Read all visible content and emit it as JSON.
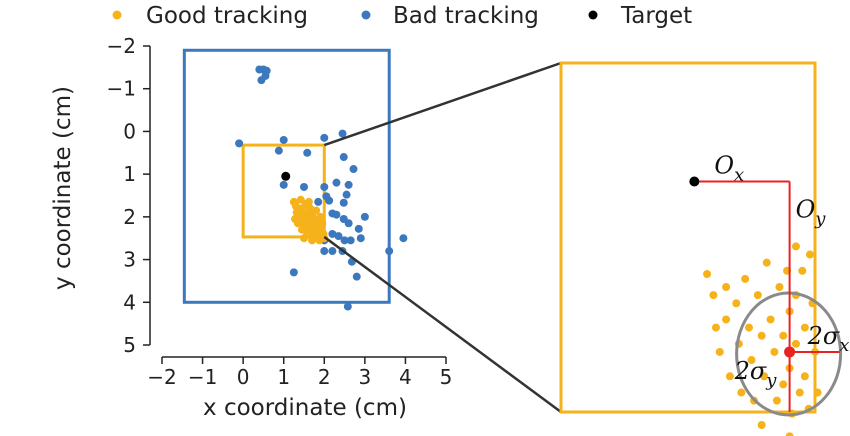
{
  "chart_data": {
    "type": "scatter",
    "title": "",
    "xlabel": "x coordinate (cm)",
    "ylabel": "y coordinate (cm)",
    "xlim": [
      -2,
      5
    ],
    "ylim": [
      5,
      -2
    ],
    "y_inverted": true,
    "xticks": [
      "−2",
      "−1",
      "0",
      "1",
      "2",
      "3",
      "4",
      "5"
    ],
    "yticks": [
      "−2",
      "−1",
      "0",
      "1",
      "2",
      "3",
      "4",
      "5"
    ],
    "grid": false,
    "legend": {
      "placement": "top",
      "entries": [
        "Good tracking",
        "Bad tracking",
        "Target"
      ]
    },
    "colors": {
      "good": "#F5B21A",
      "bad": "#3B78BE",
      "target": "#000000",
      "stat": "#E8221F",
      "ellipse": "#8A8A8A",
      "zoom_line": "#333333"
    },
    "target": {
      "x": 1.05,
      "y": 1.05
    },
    "rectangles": [
      {
        "name": "bad-tracking-extent",
        "color": "bad",
        "x": [
          -1.45,
          3.6
        ],
        "y": [
          -1.9,
          4.0
        ]
      },
      {
        "name": "good-tracking-extent",
        "color": "good",
        "x": [
          0.0,
          2.0
        ],
        "y": [
          0.32,
          2.47
        ]
      }
    ],
    "series": [
      {
        "name": "Bad tracking",
        "color": "bad",
        "points": [
          [
            0.4,
            -1.45
          ],
          [
            0.5,
            -1.45
          ],
          [
            0.55,
            -1.3
          ],
          [
            0.45,
            -1.2
          ],
          [
            0.58,
            -1.42
          ],
          [
            -0.1,
            0.28
          ],
          [
            0.88,
            0.45
          ],
          [
            1.0,
            0.2
          ],
          [
            1.58,
            0.5
          ],
          [
            2.0,
            0.15
          ],
          [
            2.48,
            0.6
          ],
          [
            2.72,
            0.88
          ],
          [
            2.45,
            0.05
          ],
          [
            1.0,
            1.25
          ],
          [
            1.5,
            1.3
          ],
          [
            2.0,
            1.3
          ],
          [
            2.05,
            1.52
          ],
          [
            2.12,
            1.62
          ],
          [
            2.2,
            1.92
          ],
          [
            2.48,
            1.67
          ],
          [
            2.6,
            1.25
          ],
          [
            2.55,
            1.48
          ],
          [
            2.3,
            1.95
          ],
          [
            2.48,
            2.05
          ],
          [
            2.6,
            2.15
          ],
          [
            2.85,
            2.28
          ],
          [
            2.5,
            2.55
          ],
          [
            2.65,
            2.55
          ],
          [
            2.35,
            2.45
          ],
          [
            2.2,
            2.4
          ],
          [
            2.0,
            2.55
          ],
          [
            2.0,
            2.8
          ],
          [
            2.2,
            2.8
          ],
          [
            2.45,
            2.8
          ],
          [
            2.68,
            3.05
          ],
          [
            2.8,
            3.4
          ],
          [
            2.9,
            2.5
          ],
          [
            3.0,
            2.0
          ],
          [
            3.6,
            2.8
          ],
          [
            3.95,
            2.5
          ],
          [
            1.25,
            3.3
          ],
          [
            2.58,
            4.1
          ],
          [
            1.85,
            1.65
          ],
          [
            1.75,
            2.1
          ],
          [
            2.3,
            1.2
          ]
        ]
      },
      {
        "name": "Good tracking",
        "color": "good",
        "points": [
          [
            1.25,
            1.65
          ],
          [
            1.3,
            1.75
          ],
          [
            1.32,
            1.9
          ],
          [
            1.38,
            1.85
          ],
          [
            1.4,
            2.0
          ],
          [
            1.45,
            1.8
          ],
          [
            1.48,
            2.1
          ],
          [
            1.5,
            1.95
          ],
          [
            1.52,
            2.2
          ],
          [
            1.55,
            1.7
          ],
          [
            1.55,
            2.05
          ],
          [
            1.6,
            1.9
          ],
          [
            1.6,
            2.25
          ],
          [
            1.62,
            2.1
          ],
          [
            1.65,
            1.8
          ],
          [
            1.68,
            2.3
          ],
          [
            1.7,
            1.95
          ],
          [
            1.7,
            2.15
          ],
          [
            1.72,
            2.4
          ],
          [
            1.75,
            2.05
          ],
          [
            1.78,
            2.2
          ],
          [
            1.8,
            1.85
          ],
          [
            1.8,
            2.35
          ],
          [
            1.82,
            2.1
          ],
          [
            1.85,
            2.45
          ],
          [
            1.88,
            2.25
          ],
          [
            1.9,
            2.0
          ],
          [
            1.92,
            2.3
          ],
          [
            1.95,
            2.15
          ],
          [
            1.98,
            2.4
          ],
          [
            2.0,
            2.5
          ],
          [
            1.35,
            2.15
          ],
          [
            1.45,
            2.3
          ],
          [
            1.58,
            2.42
          ],
          [
            1.42,
            1.6
          ],
          [
            1.62,
            1.65
          ],
          [
            1.28,
            2.05
          ],
          [
            1.5,
            2.5
          ],
          [
            1.7,
            2.55
          ],
          [
            1.88,
            2.55
          ]
        ]
      }
    ],
    "inset": {
      "target": {
        "x": 1.05,
        "y": 1.05
      },
      "mean": {
        "x": 1.8,
        "y": 2.1
      },
      "labels": {
        "offset_x": "O",
        "offset_x_sub": "x",
        "offset_y": "O",
        "offset_y_sub": "y",
        "sd_x": "2σ",
        "sd_x_sub": "x",
        "sd_y": "2σ",
        "sd_y_sub": "y"
      },
      "points": [
        [
          1.15,
          1.62
        ],
        [
          1.2,
          1.75
        ],
        [
          1.22,
          1.95
        ],
        [
          1.25,
          2.1
        ],
        [
          1.3,
          1.7
        ],
        [
          1.3,
          1.9
        ],
        [
          1.33,
          2.25
        ],
        [
          1.38,
          1.8
        ],
        [
          1.4,
          2.05
        ],
        [
          1.42,
          2.35
        ],
        [
          1.45,
          1.65
        ],
        [
          1.48,
          1.95
        ],
        [
          1.5,
          2.15
        ],
        [
          1.52,
          2.4
        ],
        [
          1.55,
          1.75
        ],
        [
          1.58,
          2.0
        ],
        [
          1.6,
          2.25
        ],
        [
          1.62,
          1.55
        ],
        [
          1.65,
          1.9
        ],
        [
          1.68,
          2.1
        ],
        [
          1.7,
          2.4
        ],
        [
          1.72,
          1.7
        ],
        [
          1.75,
          2.0
        ],
        [
          1.75,
          2.3
        ],
        [
          1.78,
          1.6
        ],
        [
          1.8,
          1.85
        ],
        [
          1.8,
          2.2
        ],
        [
          1.82,
          2.48
        ],
        [
          1.85,
          1.75
        ],
        [
          1.85,
          2.05
        ],
        [
          1.88,
          2.35
        ],
        [
          1.9,
          1.6
        ],
        [
          1.92,
          1.95
        ],
        [
          1.92,
          2.25
        ],
        [
          1.95,
          2.45
        ],
        [
          1.98,
          1.8
        ],
        [
          2.0,
          2.1
        ],
        [
          2.02,
          2.35
        ],
        [
          1.85,
          1.45
        ],
        [
          1.8,
          2.62
        ],
        [
          1.58,
          2.55
        ],
        [
          1.96,
          1.5
        ]
      ]
    }
  }
}
